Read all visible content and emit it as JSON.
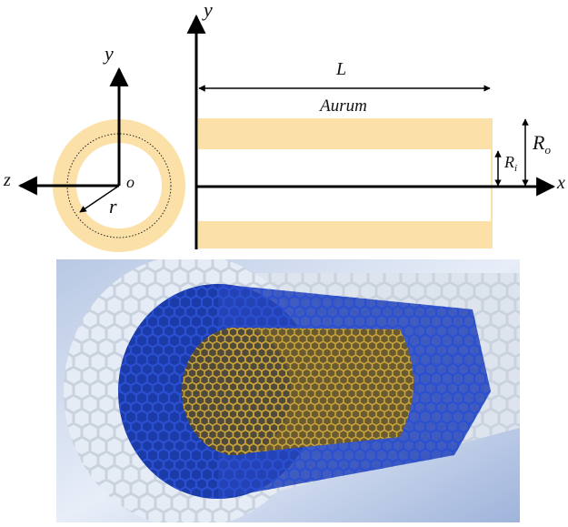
{
  "cross_section": {
    "y_label": "y",
    "z_label": "z",
    "origin_label": "o",
    "radius_label": "r"
  },
  "side_view": {
    "y_label": "y",
    "x_label": "x",
    "length_label": "L",
    "material_label": "Aurum",
    "outer_radius_label": {
      "symbol": "R",
      "subscript": "o"
    },
    "inner_radius_label": {
      "symbol": "R",
      "subscript": "i"
    }
  }
}
